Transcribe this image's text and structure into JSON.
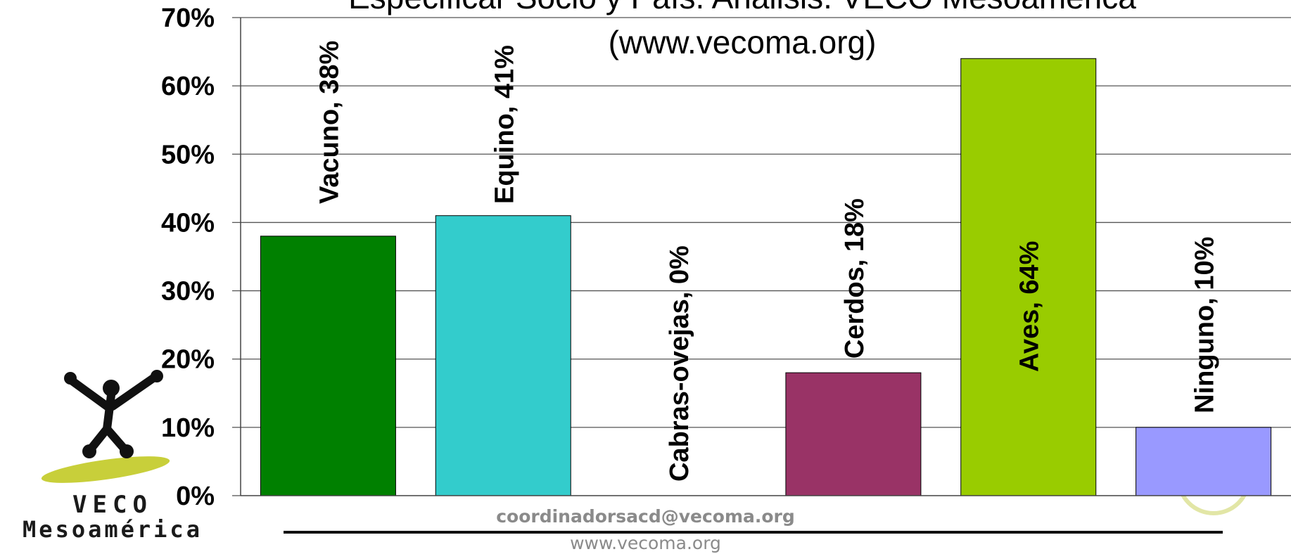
{
  "chart_data": {
    "type": "bar",
    "title_line1": "Especificar Socio y País. Análisis: VECO Mesoamérica",
    "title_line2": "(www.vecoma.org)",
    "categories": [
      "Vacuno",
      "Equino",
      "Cabras-ovejas",
      "Cerdos",
      "Aves",
      "Ninguno"
    ],
    "values": [
      38,
      41,
      0,
      18,
      64,
      10
    ],
    "data_labels": [
      "Vacuno, 38%",
      "Equino, 41%",
      "Cabras-ovejas, 0%",
      "Cerdos, 18%",
      "Aves, 64%",
      "Ninguno, 10%"
    ],
    "colors": [
      "#008000",
      "#33CCCC",
      "#FFFFFF",
      "#993366",
      "#99CC00",
      "#9999FF"
    ],
    "ylim": [
      0,
      70
    ],
    "yticks": [
      "0%",
      "10%",
      "20%",
      "30%",
      "40%",
      "50%",
      "60%",
      "70%"
    ],
    "grid": true,
    "xlabel": "",
    "ylabel": ""
  },
  "footer": {
    "email": "coordinadorsacd@vecoma.org",
    "website": "www.vecoma.org"
  },
  "logo": {
    "line1": "VECO",
    "line2": "Mesoamérica"
  }
}
